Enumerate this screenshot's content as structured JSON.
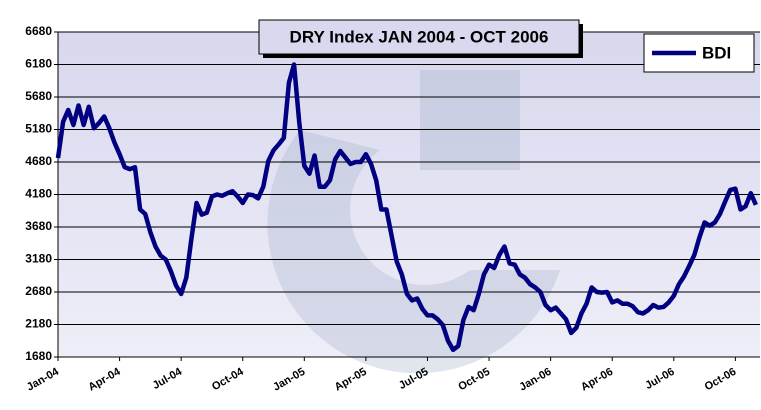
{
  "chart_data": {
    "type": "line",
    "title": "DRY Index JAN 2004 - OCT 2006",
    "x": [
      0,
      0.25,
      0.5,
      0.75,
      1,
      1.25,
      1.5,
      1.75,
      2,
      2.25,
      2.5,
      2.75,
      3,
      3.25,
      3.5,
      3.75,
      4,
      4.25,
      4.5,
      4.75,
      5,
      5.25,
      5.5,
      5.75,
      6,
      6.25,
      6.5,
      6.75,
      7,
      7.25,
      7.5,
      7.75,
      8,
      8.25,
      8.5,
      8.75,
      9,
      9.25,
      9.5,
      9.75,
      10,
      10.25,
      10.5,
      10.75,
      11,
      11.25,
      11.5,
      11.75,
      12,
      12.25,
      12.5,
      12.75,
      13,
      13.25,
      13.5,
      13.75,
      14,
      14.25,
      14.5,
      14.75,
      15,
      15.25,
      15.5,
      15.75,
      16,
      16.25,
      16.5,
      16.75,
      17,
      17.25,
      17.5,
      17.75,
      18,
      18.25,
      18.5,
      18.75,
      19,
      19.25,
      19.5,
      19.75,
      20,
      20.25,
      20.5,
      20.75,
      21,
      21.25,
      21.5,
      21.75,
      22,
      22.25,
      22.5,
      22.75,
      23,
      23.25,
      23.5,
      23.75,
      24,
      24.25,
      24.5,
      24.75,
      25,
      25.25,
      25.5,
      25.75,
      26,
      26.25,
      26.5,
      26.75,
      27,
      27.25,
      27.5,
      27.75,
      28,
      28.25,
      28.5,
      28.75,
      29,
      29.25,
      29.5,
      29.75,
      30,
      30.25,
      30.5,
      30.75,
      31,
      31.25,
      31.5,
      31.75,
      32,
      32.25,
      32.5,
      32.75,
      33,
      33.25,
      33.5,
      33.75,
      34
    ],
    "series": [
      {
        "name": "BDI",
        "color": "#000080",
        "values": [
          4740,
          5300,
          5480,
          5250,
          5550,
          5250,
          5530,
          5200,
          5280,
          5380,
          5200,
          4980,
          4800,
          4600,
          4570,
          4600,
          3950,
          3880,
          3600,
          3380,
          3240,
          3180,
          3000,
          2780,
          2650,
          2900,
          3500,
          4050,
          3870,
          3900,
          4150,
          4180,
          4160,
          4200,
          4230,
          4150,
          4050,
          4180,
          4170,
          4120,
          4300,
          4700,
          4860,
          4950,
          5050,
          5900,
          6180,
          5300,
          4620,
          4500,
          4780,
          4300,
          4300,
          4400,
          4720,
          4850,
          4750,
          4650,
          4680,
          4680,
          4800,
          4650,
          4400,
          3950,
          3950,
          3550,
          3150,
          2950,
          2650,
          2550,
          2580,
          2420,
          2320,
          2320,
          2260,
          2170,
          1930,
          1790,
          1850,
          2250,
          2450,
          2400,
          2650,
          2950,
          3100,
          3050,
          3250,
          3380,
          3120,
          3100,
          2950,
          2900,
          2800,
          2750,
          2680,
          2480,
          2400,
          2440,
          2350,
          2260,
          2050,
          2130,
          2350,
          2500,
          2750,
          2680,
          2670,
          2680,
          2520,
          2550,
          2500,
          2500,
          2460,
          2370,
          2350,
          2400,
          2480,
          2440,
          2450,
          2520,
          2620,
          2800,
          2920,
          3080,
          3250,
          3520,
          3750,
          3700,
          3750,
          3880,
          4070,
          4250,
          4270,
          3950,
          4000,
          4200,
          4020
        ]
      }
    ],
    "xlim": [
      0,
      34.2
    ],
    "xticks": [
      {
        "value": 0,
        "label": "Jan-04"
      },
      {
        "value": 3,
        "label": "Apr-04"
      },
      {
        "value": 6,
        "label": "Jul-04"
      },
      {
        "value": 9,
        "label": "Oct-04"
      },
      {
        "value": 12,
        "label": "Jan-05"
      },
      {
        "value": 15,
        "label": "Apr-05"
      },
      {
        "value": 18,
        "label": "Jul-05"
      },
      {
        "value": 21,
        "label": "Oct-05"
      },
      {
        "value": 24,
        "label": "Jan-06"
      },
      {
        "value": 27,
        "label": "Apr-06"
      },
      {
        "value": 30,
        "label": "Jul-06"
      },
      {
        "value": 33,
        "label": "Oct-06"
      }
    ],
    "ylim": [
      1680,
      6680
    ],
    "yticks": [
      1680,
      2180,
      2680,
      3180,
      3680,
      4180,
      4680,
      5180,
      5680,
      6180,
      6680
    ],
    "grid": true,
    "legend": "upper right"
  }
}
